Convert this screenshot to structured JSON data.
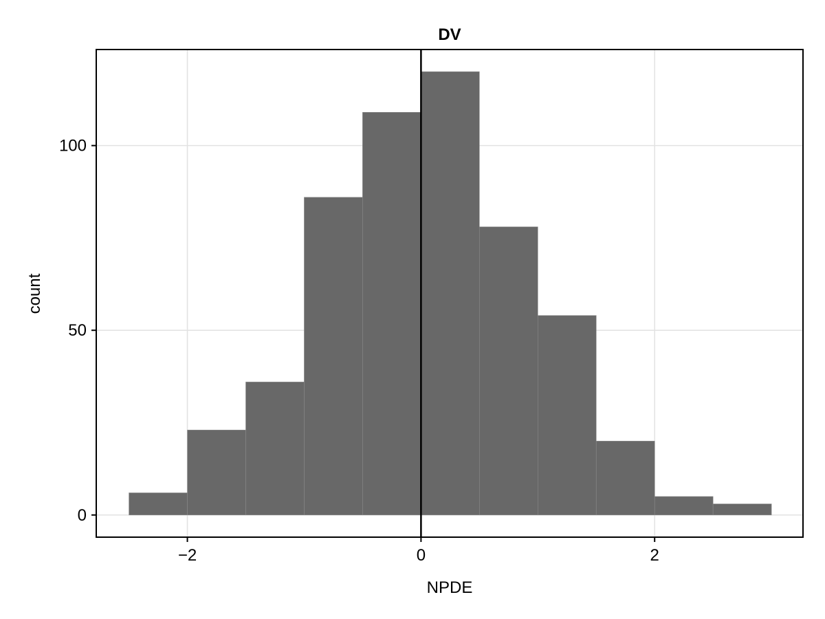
{
  "chart_data": {
    "type": "bar",
    "title": "DV",
    "xlabel": "NPDE",
    "ylabel": "count",
    "bin_edges": [
      -2.5,
      -2.0,
      -1.5,
      -1.0,
      -0.5,
      0.0,
      0.5,
      1.0,
      1.5,
      2.0,
      2.5,
      3.0
    ],
    "values": [
      6,
      23,
      36,
      86,
      109,
      120,
      78,
      54,
      20,
      5,
      3
    ],
    "xlim": [
      -2.78,
      3.27
    ],
    "ylim": [
      -6,
      126
    ],
    "x_ticks": [
      -2,
      0,
      2
    ],
    "x_tick_labels": [
      "−2",
      "0",
      "2"
    ],
    "y_ticks": [
      0,
      50,
      100
    ],
    "y_tick_labels": [
      "0",
      "50",
      "100"
    ],
    "reference_line_x": 0,
    "grid": true,
    "bar_color": "#686868"
  }
}
